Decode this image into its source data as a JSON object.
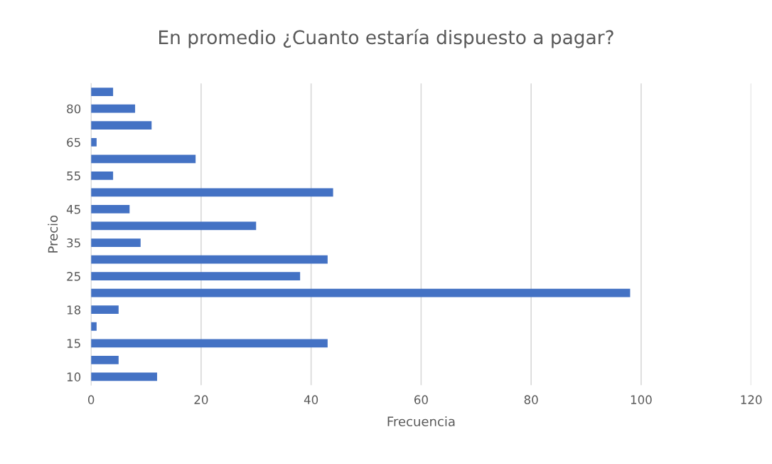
{
  "chart_data": {
    "type": "bar",
    "orientation": "horizontal",
    "title": "En promedio ¿Cuanto estaría dispuesto a pagar?",
    "xlabel": "Frecuencia",
    "ylabel": "Precio",
    "categories": [
      null,
      "80",
      null,
      "65",
      null,
      "55",
      null,
      "45",
      null,
      "35",
      null,
      "25",
      null,
      "18",
      null,
      "15",
      null,
      "10"
    ],
    "values": [
      4,
      8,
      11,
      1,
      19,
      4,
      44,
      7,
      30,
      9,
      43,
      38,
      98,
      5,
      1,
      43,
      5,
      12
    ],
    "color": "#4472c4",
    "xlim": [
      0,
      120
    ],
    "xticks": [
      0,
      20,
      40,
      60,
      80,
      100,
      120
    ],
    "grid": "x",
    "legend": false
  }
}
